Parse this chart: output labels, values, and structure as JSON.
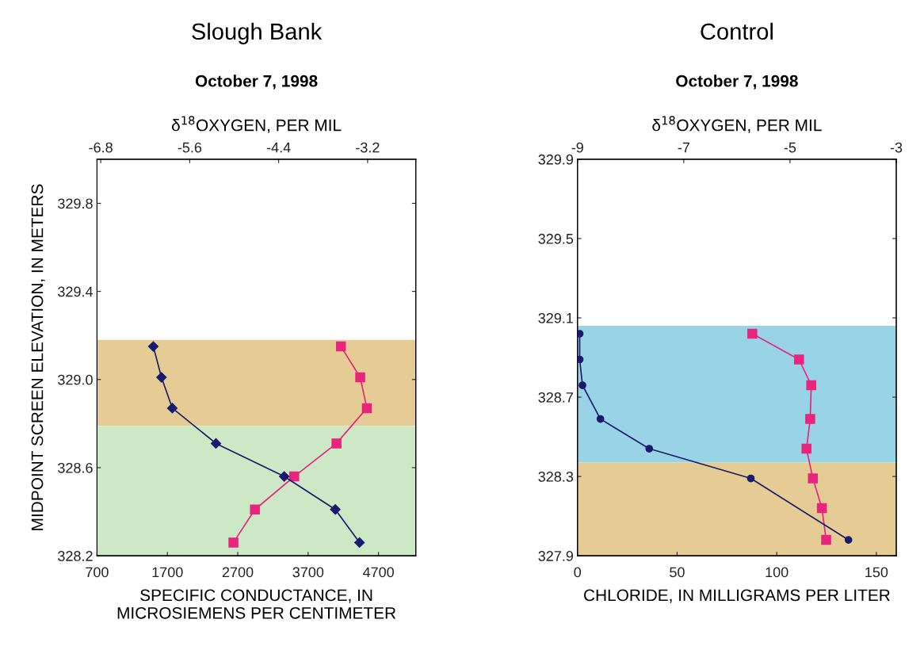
{
  "chart_data": [
    {
      "type": "line",
      "title": "Slough Bank",
      "subtitle": "October 7, 1998",
      "xlabel": "SPECIFIC CONDUCTANCE, IN\nMICROSIEMENS PER CENTIMETER",
      "x2label": "δ$^{18}$OXYGEN, PER MIL",
      "ylabel": "MIDPOINT SCREEN ELEVATION, IN METERS",
      "xlim": [
        700,
        5230
      ],
      "xticks": [
        700,
        1700,
        2700,
        3700,
        4700
      ],
      "x2lim": [
        -6.85,
        -2.55
      ],
      "x2ticks": [
        -6.8,
        -5.6,
        -4.4,
        -3.2
      ],
      "ylim": [
        328.2,
        330.0
      ],
      "yticks": [
        328.2,
        328.6,
        {
          "value": 329.0,
          "label": "329.0"
        },
        329.4,
        329.8
      ],
      "series": [
        {
          "color": "#1a1a6e",
          "marker": "diamond",
          "x": [
            1500,
            1616,
            1770,
            2390,
            3360,
            4086,
            4430
          ],
          "values": [
            329.15,
            329.01,
            328.87,
            328.71,
            328.56,
            328.41,
            328.26
          ]
        },
        {
          "color": "#e8247c",
          "marker": "square",
          "axis": "x2",
          "x": [
            -3.56,
            -3.3,
            -3.21,
            -3.62,
            -4.19,
            -4.72,
            -5.01
          ],
          "values": [
            329.15,
            329.01,
            328.87,
            328.71,
            328.56,
            328.41,
            328.26
          ]
        }
      ],
      "bands": [
        {
          "axis": "y",
          "from": 328.79,
          "to": 329.18,
          "color": "#e5cc94"
        },
        {
          "axis": "y",
          "from": 328.2,
          "to": 328.79,
          "color": "#cce8c4"
        }
      ],
      "grid": false,
      "legend": false
    },
    {
      "type": "line",
      "title": "Control",
      "subtitle": "October 7, 1998",
      "xlabel": "CHLORIDE, IN MILLIGRAMS PER LITER",
      "x2label": "δ$^{18}$OXYGEN, PER MIL",
      "xlim": [
        0,
        160
      ],
      "xticks": [
        0,
        50,
        100,
        150
      ],
      "x2lim": [
        -9,
        -3
      ],
      "x2ticks": [
        -9,
        -7,
        -5,
        -3
      ],
      "ylim": [
        327.9,
        329.9
      ],
      "yticks": [
        327.9,
        328.3,
        328.7,
        329.1,
        329.5,
        329.9
      ],
      "series": [
        {
          "color": "#1a1a6e",
          "marker": "circle",
          "x": [
            1.1,
            1.1,
            2.5,
            11.5,
            36,
            87,
            136
          ],
          "values": [
            329.02,
            328.89,
            328.76,
            328.59,
            328.44,
            328.29,
            327.98
          ]
        },
        {
          "color": "#e8247c",
          "marker": "square",
          "axis": "x2",
          "x": [
            -5.71,
            -4.83,
            -4.6,
            -4.62,
            -4.69,
            -4.57,
            -4.4,
            -4.32
          ],
          "values": [
            329.02,
            328.89,
            328.76,
            328.59,
            328.44,
            328.29,
            328.14,
            327.98
          ]
        }
      ],
      "bands": [
        {
          "axis": "y",
          "from": 328.37,
          "to": 329.06,
          "color": "#98d4e6"
        },
        {
          "axis": "y",
          "from": 327.9,
          "to": 328.37,
          "color": "#e5cc94"
        }
      ],
      "grid": false,
      "legend": false
    }
  ]
}
